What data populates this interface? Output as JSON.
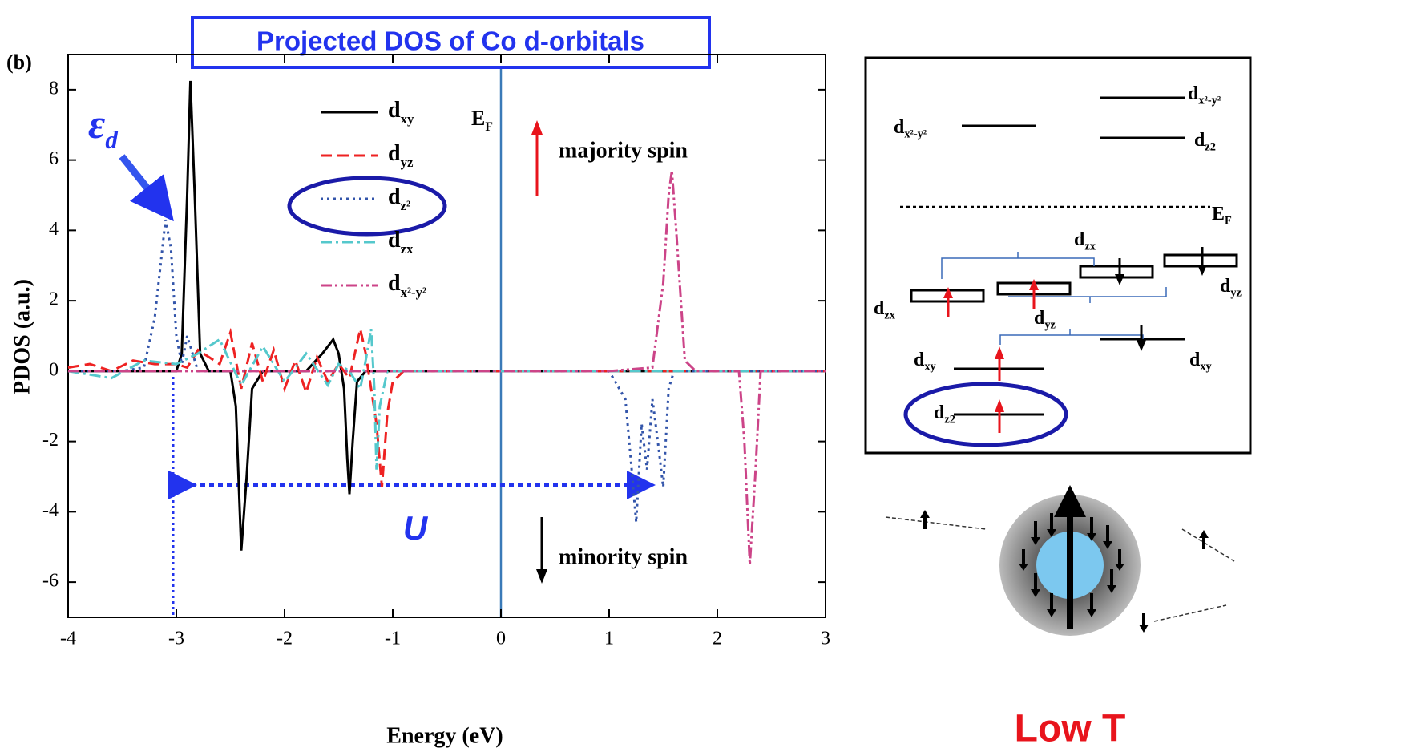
{
  "chart_data": {
    "type": "line",
    "title": "Projected DOS of Co d-orbitals",
    "panel_label": "(b)",
    "x_label": "Energy (eV)",
    "y_label": "PDOS (a.u.)",
    "xlim": [
      -4,
      3
    ],
    "xticks": [
      -4,
      -3,
      -2,
      -1,
      0,
      1,
      2,
      3
    ],
    "ylim": [
      -7,
      9
    ],
    "yticks": [
      -6,
      -4,
      -2,
      0,
      2,
      4,
      6,
      8
    ],
    "annotations": {
      "fermi": "EF",
      "majority": "majority spin",
      "minority": "minority spin",
      "level": "εd",
      "hubbard": "U"
    },
    "series": [
      {
        "name": "dxy",
        "color": "#000000",
        "style": "solid",
        "x": [
          -4,
          -3.0,
          -2.95,
          -2.9,
          -2.87,
          -2.83,
          -2.78,
          -2.7,
          -2.5,
          -2.45,
          -2.4,
          -2.35,
          -2.3,
          -2.2,
          -1.8,
          -1.65,
          -1.55,
          -1.5,
          -1.45,
          -1.42,
          -1.4,
          -1.37,
          -1.33,
          -1.25,
          3
        ],
        "values": [
          0,
          0,
          0.5,
          5,
          8.25,
          5,
          0.5,
          0,
          0,
          -1,
          -5.1,
          -3,
          -0.5,
          0,
          0,
          0.5,
          0.9,
          0.5,
          -0.5,
          -2.5,
          -3.5,
          -2,
          -0.3,
          0,
          0
        ]
      },
      {
        "name": "dyz",
        "color": "#ee2222",
        "style": "dashed",
        "x": [
          -4,
          -3.8,
          -3.6,
          -3.4,
          -3.2,
          -3.0,
          -2.9,
          -2.8,
          -2.6,
          -2.5,
          -2.4,
          -2.3,
          -2.2,
          -2.1,
          -2.0,
          -1.9,
          -1.8,
          -1.7,
          -1.6,
          -1.5,
          -1.4,
          -1.3,
          -1.25,
          -1.2,
          -1.15,
          -1.1,
          -1.05,
          -1.0,
          -0.9,
          -0.5,
          0,
          1.0,
          2,
          3
        ],
        "values": [
          0.1,
          0.2,
          0,
          0.3,
          0.2,
          0.2,
          0.1,
          0.6,
          0.2,
          1.1,
          -0.5,
          0.8,
          -0.3,
          0.6,
          -0.5,
          0.3,
          -0.6,
          0.4,
          -0.3,
          0.2,
          -0.2,
          1.2,
          0.5,
          -0.5,
          -1.5,
          -3.3,
          -1.2,
          -0.3,
          0,
          0,
          0,
          0,
          0,
          0
        ]
      },
      {
        "name": "dz²",
        "color": "#3355aa",
        "style": "dotted",
        "x": [
          -4,
          -3.5,
          -3.3,
          -3.2,
          -3.1,
          -3.05,
          -3.0,
          -2.95,
          -2.9,
          -2.8,
          -2.5,
          -2.0,
          -1.5,
          -1.0,
          0,
          1.0,
          1.15,
          1.2,
          1.25,
          1.3,
          1.35,
          1.4,
          1.45,
          1.5,
          1.55,
          1.6,
          2,
          3
        ],
        "values": [
          0,
          0,
          0.1,
          1.5,
          4.3,
          3.5,
          1.0,
          0.2,
          1.0,
          0,
          0,
          0,
          0,
          0,
          0,
          0,
          -0.8,
          -2.5,
          -4.3,
          -1.5,
          -2.8,
          -0.8,
          -2.0,
          -3.3,
          -0.5,
          0,
          0,
          0
        ]
      },
      {
        "name": "dzx",
        "color": "#55c8cc",
        "style": "dashdot",
        "x": [
          -4,
          -3.6,
          -3.3,
          -3.0,
          -2.8,
          -2.6,
          -2.4,
          -2.2,
          -2.0,
          -1.8,
          -1.6,
          -1.5,
          -1.4,
          -1.3,
          -1.25,
          -1.2,
          -1.17,
          -1.15,
          -1.12,
          -1.05,
          -1.0,
          -0.8,
          0,
          3
        ],
        "values": [
          0,
          -0.2,
          0.3,
          0.2,
          0.5,
          0.9,
          -0.4,
          0.7,
          -0.3,
          0.5,
          -0.4,
          0.2,
          0,
          -0.5,
          0.3,
          1.2,
          -0.5,
          -2.8,
          -1.0,
          0,
          0,
          0,
          0,
          0
        ]
      },
      {
        "name": "dx²-y²",
        "color": "#cc4488",
        "style": "dashdotdot",
        "x": [
          -4,
          1.0,
          1.4,
          1.5,
          1.55,
          1.58,
          1.62,
          1.7,
          1.8,
          2.2,
          2.25,
          2.3,
          2.35,
          2.4,
          3
        ],
        "values": [
          0,
          0,
          0.1,
          2.5,
          5.0,
          5.7,
          4.0,
          0.3,
          0,
          0,
          -2,
          -5.5,
          -3,
          0,
          0
        ]
      }
    ]
  },
  "diagram": {
    "labels": [
      "dx²-y²",
      "dx²-y²",
      "dz2",
      "EF",
      "dzx",
      "dzx",
      "dyz",
      "dyz",
      "dxy",
      "dxy",
      "dz2"
    ],
    "caption": "Low T"
  }
}
